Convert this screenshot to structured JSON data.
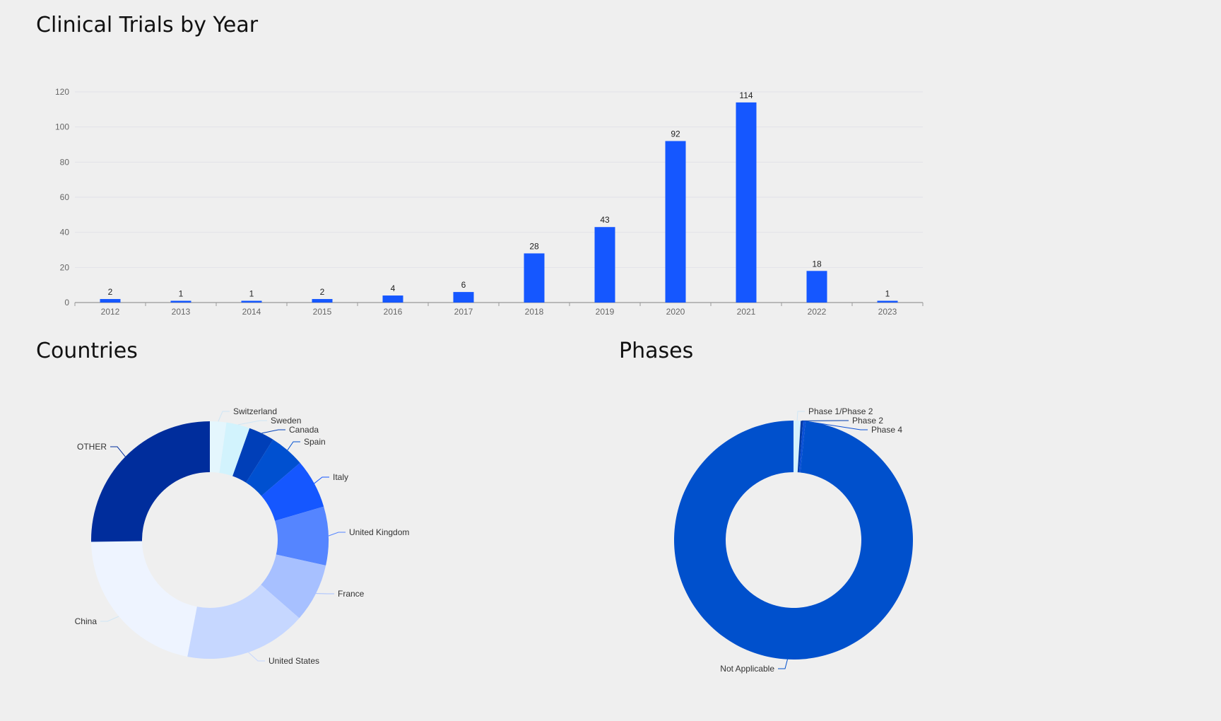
{
  "chart_data": [
    {
      "type": "bar",
      "title": "Clinical Trials by Year",
      "categories": [
        "2012",
        "2013",
        "2014",
        "2015",
        "2016",
        "2017",
        "2018",
        "2019",
        "2020",
        "2021",
        "2022",
        "2023"
      ],
      "values": [
        2,
        1,
        1,
        2,
        4,
        6,
        28,
        43,
        92,
        114,
        18,
        1
      ],
      "ylim": [
        0,
        120
      ],
      "yticks": [
        0,
        20,
        40,
        60,
        80,
        100,
        120
      ],
      "grid": true,
      "color": "#1557ff"
    },
    {
      "type": "pie",
      "donut": true,
      "title": "Countries",
      "labels": [
        "Switzerland",
        "Sweden",
        "Canada",
        "Spain",
        "Italy",
        "United Kingdom",
        "France",
        "United States",
        "China",
        "OTHER"
      ],
      "values": [
        7,
        10,
        11,
        15,
        21,
        25,
        25,
        52,
        68,
        79
      ],
      "colors": [
        "#e4f6fd",
        "#d2f3fd",
        "#003fb8",
        "#0050d0",
        "#1557ff",
        "#5585ff",
        "#a7c0ff",
        "#c6d7ff",
        "#eef4ff",
        "#002d9c"
      ]
    },
    {
      "type": "pie",
      "donut": true,
      "title": "Phases",
      "labels": [
        "Phase 1/Phase 2",
        "Phase 2",
        "Phase 4",
        "Not Applicable"
      ],
      "values": [
        3,
        1,
        1,
        307
      ],
      "colors": [
        "#d4f1fc",
        "#003aa8",
        "#0a4fd6",
        "#0050cc"
      ]
    }
  ]
}
